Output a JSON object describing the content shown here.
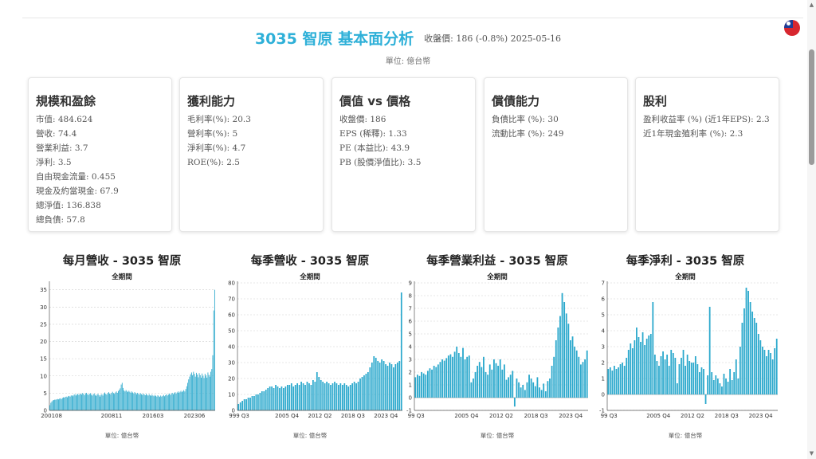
{
  "header": {
    "title": "3035 智原 基本面分析",
    "meta": "收盤價: 186 (-0.8%) 2025-05-16",
    "unit": "單位: 億台幣",
    "flag_icon": "taiwan-flag-icon"
  },
  "cards": [
    {
      "title": "規模和盈餘",
      "rows": [
        "市值: 484.624",
        "營收: 74.4",
        "營業利益: 3.7",
        "淨利: 3.5",
        "自由現金流量: 0.455",
        "現金及約當現金: 67.9",
        "總淨值: 136.838",
        "總負債: 57.8"
      ]
    },
    {
      "title": "獲利能力",
      "rows": [
        "毛利率(%): 20.3",
        "營利率(%): 5",
        "淨利率(%): 4.7",
        "ROE(%): 2.5"
      ]
    },
    {
      "title": "價值 vs 價格",
      "rows": [
        "收盤價: 186",
        "EPS (稀釋): 1.33",
        "PE (本益比): 43.9",
        "PB (股價淨值比): 3.5"
      ]
    },
    {
      "title": "償債能力",
      "rows": [
        "負債比率 (%): 30",
        "流動比率 (%): 249"
      ]
    },
    {
      "title": "股利",
      "rows": [
        "盈利收益率 (%) (近1年EPS): 2.3",
        "近1年現金殖利率 (%): 2.3"
      ]
    }
  ],
  "charts": [
    {
      "title": "每月營收 - 3035 智原",
      "subtitle": "全期間",
      "unit": "單位: 億台幣"
    },
    {
      "title": "每季營收 - 3035 智原",
      "subtitle": "全期間",
      "unit": "單位: 億台幣"
    },
    {
      "title": "每季營業利益 - 3035 智原",
      "subtitle": "全期間",
      "unit": "單位: 億台幣"
    },
    {
      "title": "每季淨利 - 3035 智原",
      "subtitle": "全期間",
      "unit": "單位: 億台幣"
    }
  ],
  "chart_data": [
    {
      "type": "bar",
      "title": "每月營收 - 3035 智原",
      "subtitle": "全期間",
      "ylim": [
        0,
        37
      ],
      "yticks": [
        0,
        5,
        10,
        15,
        20,
        25,
        30,
        35
      ],
      "xticks": [
        "200108",
        "200811",
        "201603",
        "202306"
      ],
      "values": [
        1.5,
        2.2,
        2.6,
        2.9,
        3.0,
        3.1,
        3.1,
        3.2,
        3.3,
        3.2,
        3.4,
        3.5,
        3.3,
        3.6,
        3.8,
        3.7,
        3.9,
        4.0,
        3.8,
        4.1,
        4.2,
        4.0,
        4.3,
        4.4,
        4.1,
        4.5,
        4.7,
        4.3,
        4.6,
        4.8,
        4.5,
        4.7,
        4.9,
        4.6,
        5.0,
        4.8,
        4.4,
        4.9,
        5.1,
        4.7,
        4.5,
        4.8,
        5.0,
        4.6,
        4.3,
        4.7,
        4.9,
        4.5,
        4.2,
        4.6,
        4.8,
        4.4,
        4.0,
        4.5,
        4.7,
        4.3,
        4.9,
        5.2,
        4.8,
        4.6,
        5.0,
        5.3,
        4.9,
        4.7,
        5.1,
        5.4,
        5.0,
        4.8,
        5.2,
        5.5,
        5.1,
        5.6,
        6.0,
        6.4,
        7.5,
        8.0,
        6.5,
        5.8,
        5.5,
        5.9,
        5.6,
        5.3,
        5.7,
        5.4,
        5.1,
        5.5,
        5.2,
        4.9,
        5.3,
        5.0,
        4.7,
        5.1,
        4.8,
        4.6,
        5.0,
        4.7,
        4.5,
        4.9,
        4.6,
        4.4,
        4.8,
        4.5,
        4.3,
        4.7,
        4.4,
        4.2,
        4.6,
        4.3,
        4.1,
        4.5,
        4.2,
        4.0,
        4.4,
        4.1,
        3.9,
        4.3,
        4.0,
        4.2,
        4.5,
        4.1,
        4.4,
        4.7,
        4.3,
        4.6,
        4.9,
        4.5,
        4.8,
        5.1,
        4.7,
        5.0,
        5.3,
        4.9,
        5.2,
        5.5,
        5.1,
        5.4,
        5.7,
        5.3,
        5.6,
        5.9,
        5.5,
        6.2,
        7.0,
        8.0,
        9.0,
        9.8,
        10.5,
        11.0,
        10.2,
        11.2,
        10.6,
        9.8,
        10.9,
        10.4,
        9.6,
        10.8,
        10.2,
        9.5,
        10.7,
        10.0,
        9.4,
        10.6,
        10.1,
        9.5,
        11.0,
        10.3,
        9.8,
        11.2,
        12.0,
        16.0,
        29.0,
        35.0
      ]
    },
    {
      "type": "bar",
      "title": "每季營收 - 3035 智原",
      "subtitle": "全期間",
      "ylim": [
        0,
        80
      ],
      "yticks": [
        0,
        10,
        20,
        30,
        40,
        50,
        60,
        70,
        80
      ],
      "xticks": [
        "999 Q3",
        "2005 Q4",
        "2012 Q2",
        "2018 Q3",
        "2023 Q4"
      ],
      "values": [
        4,
        5,
        6,
        7,
        7,
        8,
        8,
        9,
        9,
        10,
        10,
        11,
        12,
        12,
        13,
        14,
        15,
        15,
        14,
        16,
        15,
        14,
        15,
        14,
        15,
        16,
        16,
        17,
        15,
        16,
        17,
        16,
        18,
        17,
        16,
        18,
        17,
        16,
        19,
        18,
        24,
        21,
        19,
        18,
        17,
        18,
        17,
        16,
        17,
        18,
        17,
        16,
        17,
        16,
        17,
        16,
        15,
        16,
        17,
        18,
        17,
        18,
        20,
        21,
        22,
        23,
        24,
        27,
        30,
        34,
        33,
        31,
        30,
        32,
        31,
        29,
        28,
        30,
        29,
        27,
        29,
        30,
        31,
        74
      ]
    },
    {
      "type": "bar",
      "title": "每季營業利益 - 3035 智原",
      "subtitle": "全期間",
      "ylim": [
        -1,
        9
      ],
      "yticks": [
        -1,
        0,
        1,
        2,
        3,
        4,
        5,
        6,
        7,
        8,
        9
      ],
      "xticks": [
        "99 Q3",
        "2005 Q4",
        "2012 Q2",
        "2018 Q3",
        "2023 Q4"
      ],
      "values": [
        1.6,
        1.8,
        1.7,
        2.0,
        1.9,
        1.8,
        2.1,
        2.3,
        2.2,
        2.5,
        2.4,
        2.6,
        2.8,
        3.0,
        2.9,
        3.1,
        3.3,
        3.4,
        3.2,
        3.6,
        4.0,
        3.5,
        3.2,
        3.9,
        3.0,
        3.2,
        3.3,
        1.2,
        1.5,
        2.0,
        2.5,
        2.8,
        2.4,
        3.2,
        2.0,
        1.8,
        2.6,
        2.2,
        3.0,
        2.7,
        2.5,
        3.0,
        2.2,
        2.6,
        1.4,
        1.6,
        1.8,
        2.1,
        -0.7,
        1.5,
        1.2,
        0.8,
        1.0,
        0.6,
        1.2,
        1.8,
        1.5,
        1.2,
        0.9,
        1.6,
        0.8,
        0.6,
        1.1,
        0.5,
        1.3,
        1.5,
        2.5,
        3.2,
        4.5,
        5.5,
        6.4,
        8.2,
        7.5,
        6.6,
        5.8,
        4.5,
        4.8,
        4.0,
        3.7,
        3.2,
        2.6,
        2.8,
        3.0,
        3.7
      ]
    },
    {
      "type": "bar",
      "title": "每季淨利 - 3035 智原",
      "subtitle": "全期間",
      "ylim": [
        -1,
        7
      ],
      "yticks": [
        -1,
        0,
        1,
        2,
        3,
        4,
        5,
        6,
        7
      ],
      "xticks": [
        "99 Q3",
        "2005 Q4",
        "2012 Q2",
        "2018 Q3",
        "2023 Q4"
      ],
      "values": [
        1.6,
        1.7,
        1.5,
        1.8,
        1.6,
        1.7,
        1.9,
        2.0,
        1.8,
        2.3,
        2.8,
        3.2,
        2.9,
        3.4,
        4.2,
        3.6,
        3.3,
        3.9,
        3.1,
        3.5,
        3.7,
        3.8,
        5.8,
        2.5,
        2.1,
        1.8,
        2.4,
        2.7,
        2.2,
        2.5,
        1.8,
        2.8,
        2.6,
        2.3,
        0.7,
        1.9,
        2.3,
        2.8,
        1.8,
        2.5,
        2.1,
        2.0,
        2.0,
        2.4,
        1.9,
        1.4,
        1.7,
        1.6,
        -0.6,
        1.2,
        5.5,
        1.4,
        0.9,
        1.2,
        1.0,
        0.7,
        0.5,
        1.3,
        1.0,
        0.8,
        1.6,
        0.9,
        1.4,
        2.2,
        1.0,
        3.0,
        4.5,
        5.4,
        6.7,
        6.5,
        5.8,
        5.2,
        4.8,
        4.5,
        3.8,
        3.4,
        3.0,
        2.8,
        2.4,
        2.8,
        2.6,
        2.2,
        2.9,
        3.5
      ]
    }
  ]
}
